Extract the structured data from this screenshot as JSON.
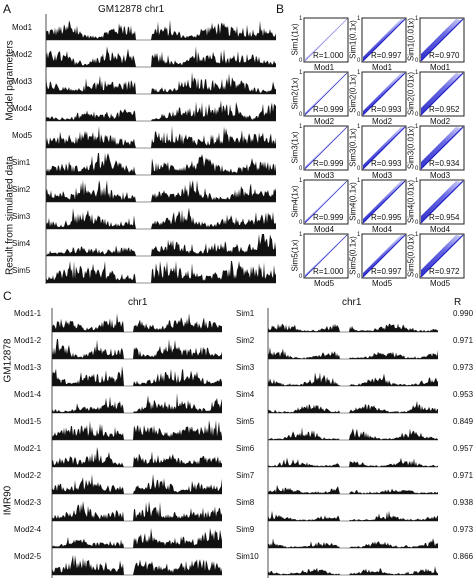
{
  "panels": {
    "A": {
      "letter": "A",
      "title": "GM12878 chr1",
      "group_labels": [
        "Model parameters",
        "Result from simulated data"
      ],
      "rows": [
        "Mod1",
        "Mod2",
        "Mod3",
        "Mod4",
        "Mod5",
        "Sim1",
        "Sim2",
        "Sim3",
        "Sim4",
        "Sim5"
      ]
    },
    "B": {
      "letter": "B",
      "y_labels": [
        [
          "Sim1(1x)",
          "Sim1(0.1x)",
          "Sim1(0.01x)"
        ],
        [
          "Sim2(1x)",
          "Sim2(0.1x)",
          "Sim2(0.01x)"
        ],
        [
          "Sim3(1x)",
          "Sim3(0.1x)",
          "Sim3(0.01x)"
        ],
        [
          "Sim4(1x)",
          "Sim4(0.1x)",
          "Sim4(0.01x)"
        ],
        [
          "Sim5(1x)",
          "Sim5(0.1x)",
          "Sim5(0.01x)"
        ]
      ],
      "x_labels": [
        "Mod1",
        "Mod2",
        "Mod3",
        "Mod4",
        "Mod5"
      ],
      "r_values": [
        [
          "R=1.000",
          "R=0.997",
          "R=0.970"
        ],
        [
          "R=0.999",
          "R=0.993",
          "R=0.952"
        ],
        [
          "R=0.999",
          "R=0.993",
          "R=0.934"
        ],
        [
          "R=0.999",
          "R=0.995",
          "R=0.954"
        ],
        [
          "R=1.000",
          "R=0.997",
          "R=0.972"
        ]
      ],
      "axis_ticks": [
        "0",
        "1",
        "1"
      ],
      "density_colors": [
        "#ffffff",
        "#c8c8f5",
        "#5050e0",
        "#1010c0"
      ]
    },
    "C": {
      "letter": "C",
      "chr_label_left": "chr1",
      "chr_label_right": "chr1",
      "r_header": "R",
      "group_labels": [
        "GM12878",
        "IMR90"
      ],
      "left_rows": [
        "Mod1-1",
        "Mod1-2",
        "Mod1-3",
        "Mod1-4",
        "Mod1-5",
        "Mod2-1",
        "Mod2-2",
        "Mod2-3",
        "Mod2-4",
        "Mod2-5"
      ],
      "right_rows": [
        "Sim1",
        "Sim2",
        "Sim3",
        "Sim4",
        "Sim5",
        "Sim6",
        "Sim7",
        "Sim8",
        "Sim9",
        "Sim10"
      ],
      "r_values": [
        "0.990",
        "0.971",
        "0.973",
        "0.953",
        "0.849",
        "0.957",
        "0.971",
        "0.938",
        "0.973",
        "0.866"
      ]
    }
  },
  "colors": {
    "track": "#111111",
    "axis": "#222222"
  }
}
